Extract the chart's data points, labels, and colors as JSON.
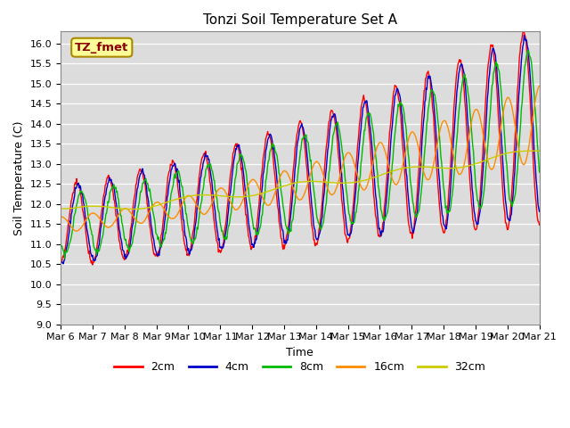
{
  "title": "Tonzi Soil Temperature Set A",
  "xlabel": "Time",
  "ylabel": "Soil Temperature (C)",
  "ylim": [
    9.0,
    16.3
  ],
  "annotation_text": "TZ_fmet",
  "annotation_color": "#8B0000",
  "annotation_bg": "#FFFF99",
  "legend_labels": [
    "2cm",
    "4cm",
    "8cm",
    "16cm",
    "32cm"
  ],
  "line_colors": [
    "#FF0000",
    "#0000CC",
    "#00BB00",
    "#FF8C00",
    "#CCCC00"
  ],
  "x_tick_labels": [
    "Mar 6",
    "Mar 7",
    "Mar 8",
    "Mar 9",
    "Mar 10",
    "Mar 11",
    "Mar 12",
    "Mar 13",
    "Mar 14",
    "Mar 15",
    "Mar 16",
    "Mar 17",
    "Mar 18",
    "Mar 19",
    "Mar 20",
    "Mar 21"
  ],
  "n_points": 720
}
